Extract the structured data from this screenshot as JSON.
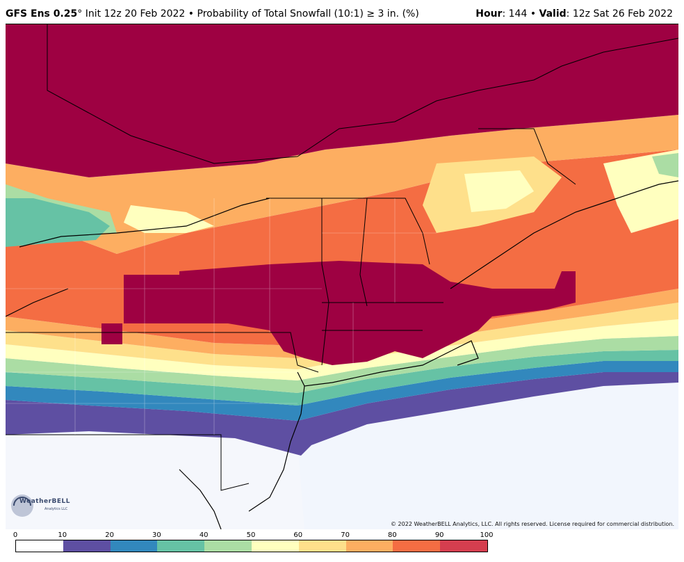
{
  "header": {
    "model": "GFS Ens 0.25",
    "degree": "°",
    "init": "Init 12z 20 Feb 2022",
    "bullet": "•",
    "product": "Probability of Total Snowfall (10:1) ≥ 3 in. (%)",
    "hour_label": "Hour",
    "hour_value": ": 144",
    "valid_label": "Valid",
    "valid_value": ": 12z Sat 26 Feb 2022"
  },
  "copyright": "© 2022 WeatherBELL Analytics, LLC. All rights reserved. License required for commercial distribution.",
  "logo": {
    "name": "WeatherBELL",
    "sub": "Analytics LLC"
  },
  "colorbar": {
    "ticks": [
      "0",
      "10",
      "20",
      "30",
      "40",
      "50",
      "60",
      "70",
      "80",
      "90",
      "100"
    ],
    "colors": [
      "#ffffff",
      "#5e4fa2",
      "#3288bd",
      "#66c2a5",
      "#abdda4",
      "#ffffbf",
      "#fee08b",
      "#fdae61",
      "#f46d43",
      "#d53e4f",
      "#9e0142"
    ]
  }
}
